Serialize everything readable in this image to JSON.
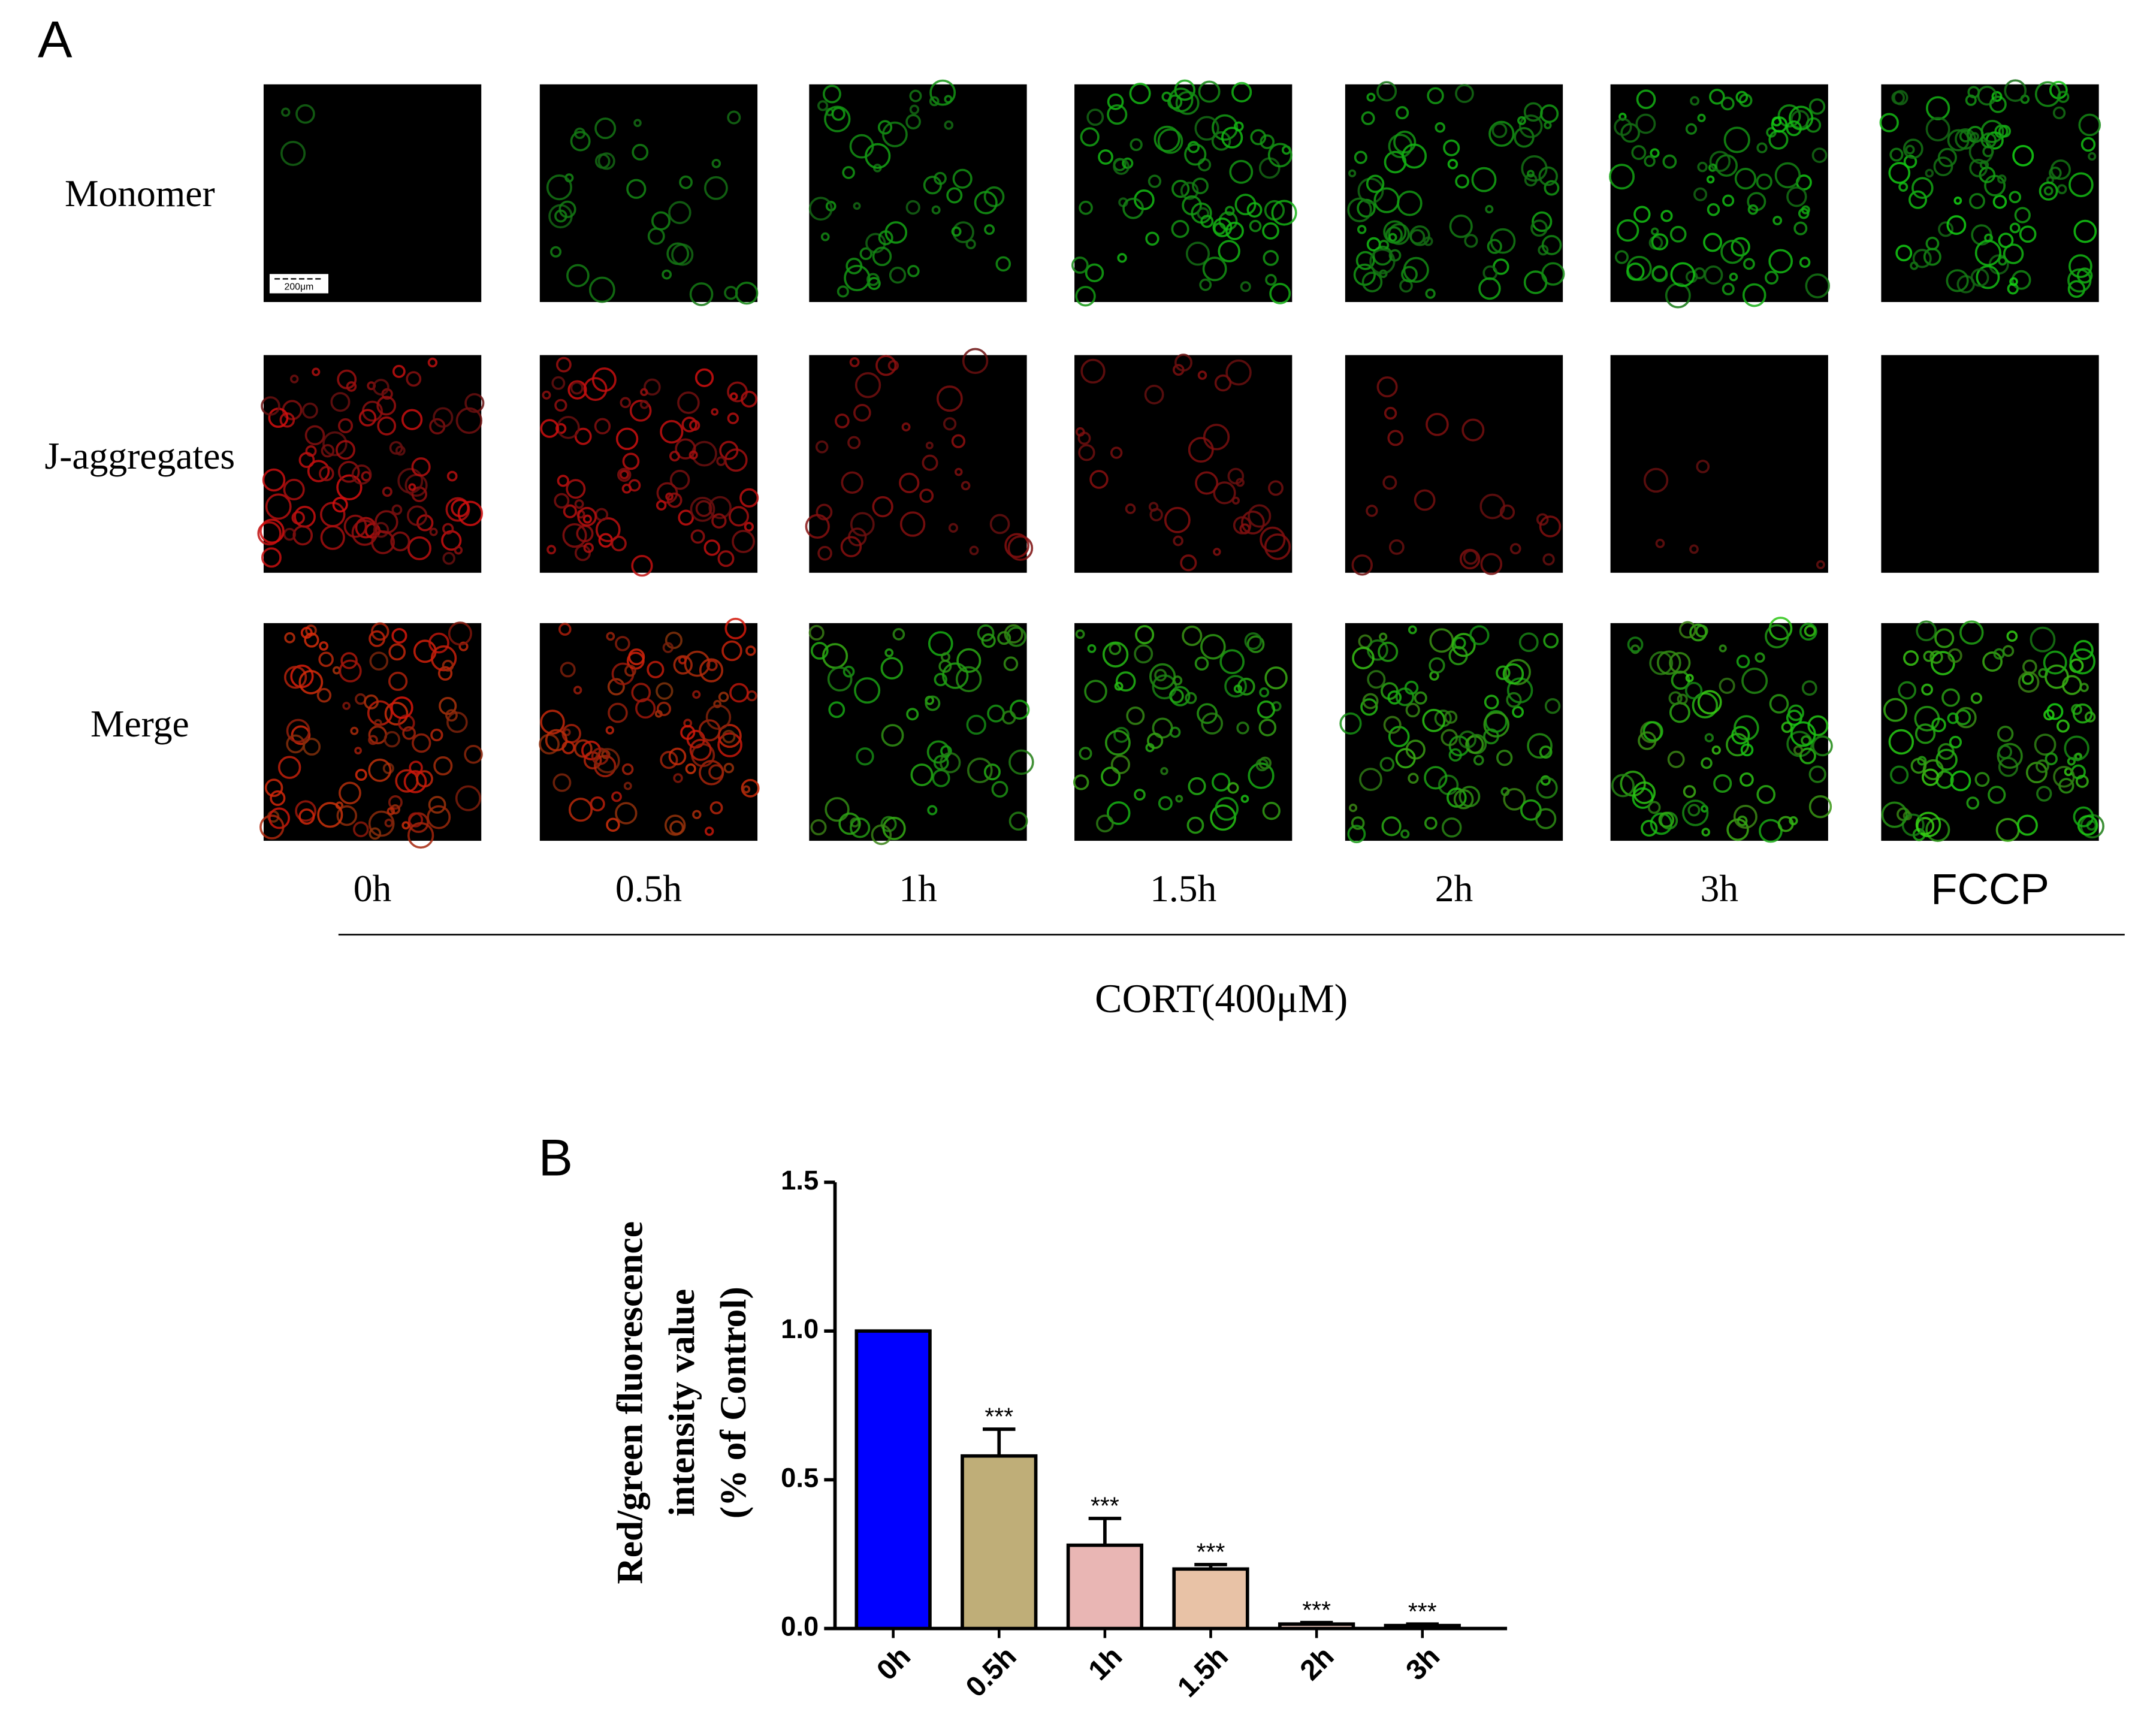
{
  "panel_a": {
    "label": "A",
    "rows": [
      "Monomer",
      "J-aggregates",
      "Merge"
    ],
    "columns": [
      "0h",
      "0.5h",
      "1h",
      "1.5h",
      "2h",
      "3h",
      "FCCP"
    ],
    "treatment": "CORT(400μM)",
    "scale_bar": "200μm"
  },
  "chart_data": {
    "type": "bar",
    "panel_label": "B",
    "ylabel": [
      "Red/green fluorescence",
      "intensity value",
      "(% of Control)"
    ],
    "categories": [
      "0h",
      "0.5h",
      "1h",
      "1.5h",
      "2h",
      "3h"
    ],
    "values": [
      1.0,
      0.58,
      0.28,
      0.2,
      0.015,
      0.01
    ],
    "errors": [
      0,
      0.09,
      0.09,
      0.015,
      0.005,
      0.005
    ],
    "significance": [
      null,
      "***",
      "***",
      "***",
      "***",
      "***"
    ],
    "colors": [
      "#0000ff",
      "#bfae78",
      "#e9b6b4",
      "#e8c2a6",
      "#e0bdb4",
      "#e6c9c2"
    ],
    "ylim": [
      0,
      1.5
    ],
    "yticks": [
      {
        "value": 0,
        "label": "0.0"
      },
      {
        "value": 0.5,
        "label": "0.5"
      },
      {
        "value": 1,
        "label": "1.0"
      },
      {
        "value": 1.5,
        "label": "1.5"
      }
    ]
  }
}
